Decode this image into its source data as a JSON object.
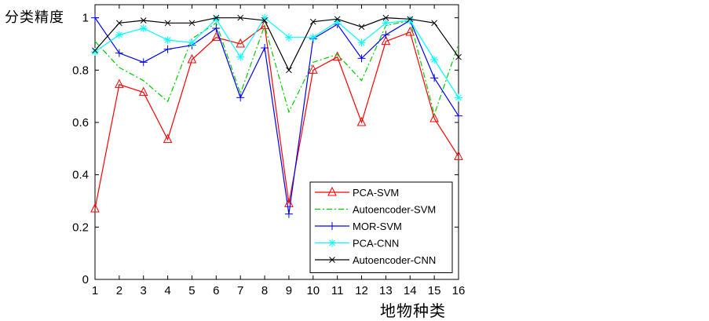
{
  "chart_data": {
    "type": "line",
    "title": "",
    "xlabel": "地物种类",
    "ylabel": "分类精度",
    "categories": [
      "1",
      "2",
      "3",
      "4",
      "5",
      "6",
      "7",
      "8",
      "9",
      "10",
      "11",
      "12",
      "13",
      "14",
      "15",
      "16"
    ],
    "ylim": [
      0,
      1.05
    ],
    "yticks": [
      0,
      0.2,
      0.4,
      0.6,
      0.8,
      1
    ],
    "ytick_labels": [
      "0",
      "0.2",
      "0.4",
      "0.6",
      "0.8",
      "1"
    ],
    "grid": false,
    "legend_position": "lower-right",
    "series": [
      {
        "name": "PCA-SVM",
        "color": "#ff0000",
        "marker": "triangle",
        "dash": "solid",
        "values": [
          0.27,
          0.745,
          0.715,
          0.535,
          0.84,
          0.925,
          0.9,
          0.97,
          0.29,
          0.8,
          0.85,
          0.6,
          0.91,
          0.945,
          0.615,
          0.47
        ]
      },
      {
        "name": "Autoencoder-SVM",
        "color": "#00cc00",
        "marker": "none",
        "dash": "dashdot",
        "values": [
          0.91,
          0.81,
          0.76,
          0.68,
          0.92,
          0.98,
          0.71,
          0.97,
          0.64,
          0.83,
          0.86,
          0.76,
          0.97,
          0.99,
          0.63,
          0.9
        ]
      },
      {
        "name": "MOR-SVM",
        "color": "#0000ff",
        "marker": "plus",
        "dash": "solid",
        "values": [
          1.0,
          0.865,
          0.83,
          0.88,
          0.895,
          0.96,
          0.695,
          0.885,
          0.25,
          0.92,
          0.975,
          0.845,
          0.935,
          0.99,
          0.77,
          0.625
        ]
      },
      {
        "name": "PCA-CNN",
        "color": "#00ffff",
        "marker": "asterisk",
        "dash": "solid",
        "values": [
          0.87,
          0.935,
          0.96,
          0.915,
          0.905,
          0.995,
          0.85,
          1.0,
          0.925,
          0.925,
          0.985,
          0.905,
          0.98,
          0.99,
          0.84,
          0.695
        ]
      },
      {
        "name": "Autoencoder-CNN",
        "color": "#000000",
        "marker": "x",
        "dash": "solid",
        "values": [
          0.875,
          0.98,
          0.99,
          0.98,
          0.98,
          1.0,
          1.0,
          0.99,
          0.8,
          0.985,
          0.995,
          0.965,
          1.0,
          0.995,
          0.98,
          0.85
        ]
      }
    ]
  }
}
